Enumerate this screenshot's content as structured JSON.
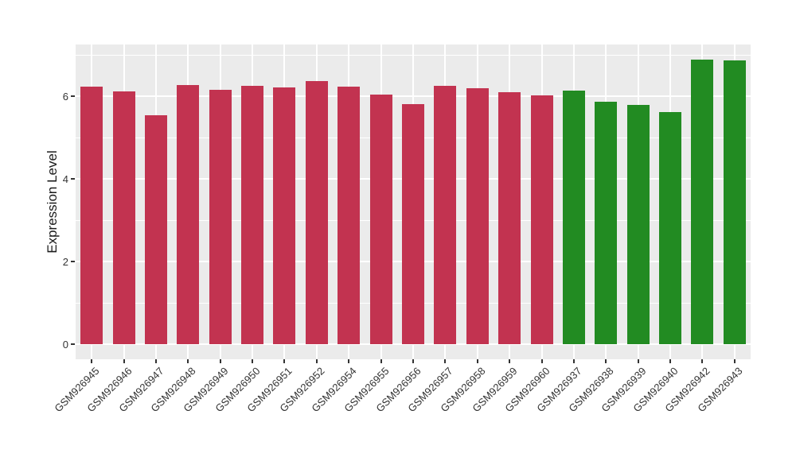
{
  "figure": {
    "background": "#FFFFFF",
    "panel_background": "#EBEBEB",
    "grid_color": "#FFFFFF",
    "axis_text_color": "#333333",
    "axis_title_color": "#1A1A1A",
    "tick_color": "#333333"
  },
  "chart_data": {
    "type": "bar",
    "title": "",
    "xlabel": "",
    "ylabel": "Expression Level",
    "ylim": [
      -0.37,
      7.25
    ],
    "yticks": [
      0,
      2,
      4,
      6
    ],
    "yticks_minor": [
      1,
      3,
      5,
      7
    ],
    "grid": "major and minor, white on gray panel",
    "legend": "none",
    "x_tick_label_rotation_deg": 45,
    "categories": [
      "GSM926945",
      "GSM926946",
      "GSM926947",
      "GSM926948",
      "GSM926949",
      "GSM926950",
      "GSM926951",
      "GSM926952",
      "GSM926954",
      "GSM926955",
      "GSM926956",
      "GSM926957",
      "GSM926958",
      "GSM926959",
      "GSM926960",
      "GSM926937",
      "GSM926938",
      "GSM926939",
      "GSM926940",
      "GSM926942",
      "GSM926943"
    ],
    "values": [
      6.22,
      6.1,
      5.53,
      6.27,
      6.15,
      6.24,
      6.21,
      6.35,
      6.23,
      6.03,
      5.81,
      6.24,
      6.19,
      6.09,
      6.01,
      6.12,
      5.86,
      5.79,
      5.61,
      6.88,
      6.86
    ],
    "groups": [
      "red",
      "red",
      "red",
      "red",
      "red",
      "red",
      "red",
      "red",
      "red",
      "red",
      "red",
      "red",
      "red",
      "red",
      "red",
      "green",
      "green",
      "green",
      "green",
      "green",
      "green"
    ],
    "palette": {
      "red": "#C23350",
      "green": "#228B22"
    }
  }
}
